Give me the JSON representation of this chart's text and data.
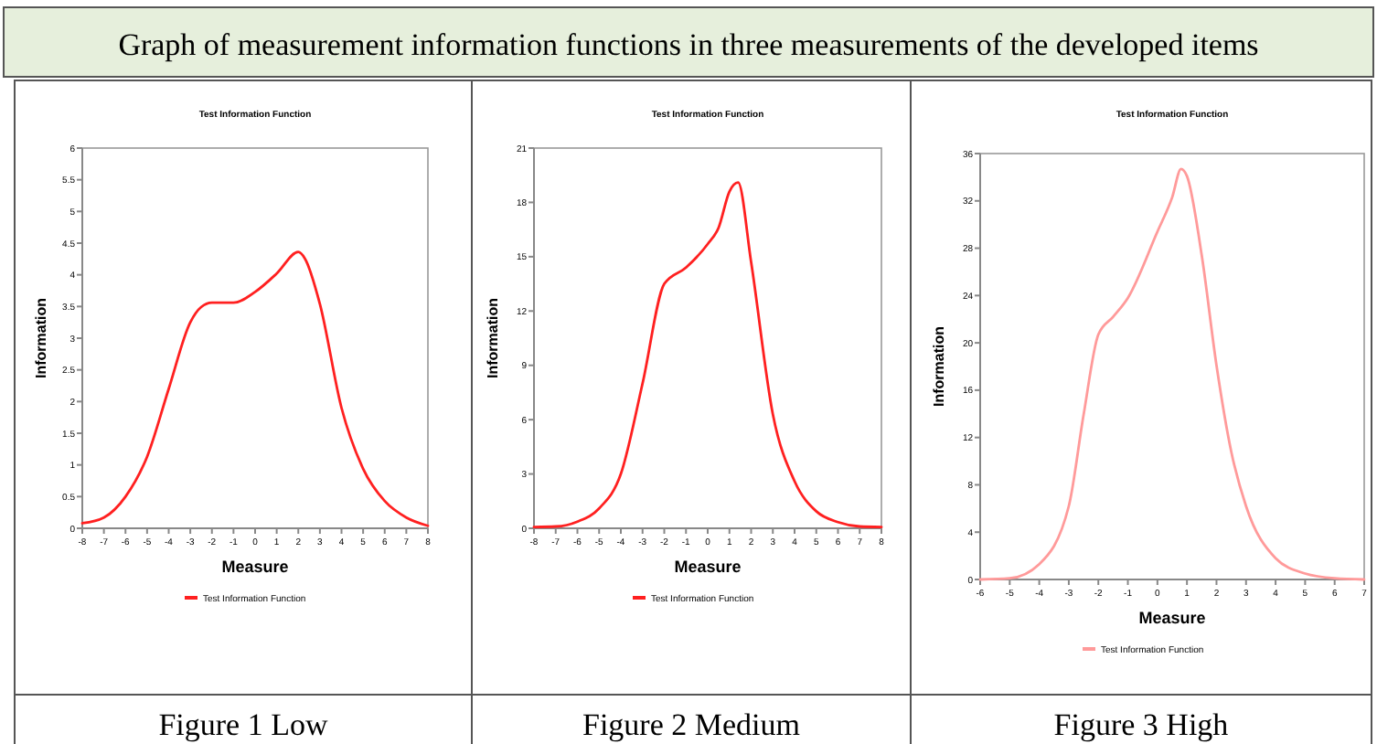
{
  "chart_data": [
    {
      "type": "line",
      "title": "Test Information Function",
      "xlabel": "Measure",
      "ylabel": "Information",
      "annotations": [
        "Graph of measurement  information functions  in three measurements  of the developed items",
        "Figure 1 Low"
      ],
      "legend": "bottom",
      "grid": false,
      "marker": "none",
      "line_style": "solid",
      "xlim": [
        -8,
        8
      ],
      "xticks": [
        -8,
        -7,
        -6,
        -5,
        -4,
        -3,
        -2,
        -1,
        0,
        1,
        2,
        3,
        4,
        5,
        6,
        7,
        8
      ],
      "ylim": [
        0,
        6
      ],
      "yticks": [
        0,
        0.5,
        1,
        1.5,
        2,
        2.5,
        3,
        3.5,
        4,
        4.5,
        5,
        5.5,
        6
      ],
      "x": [
        -8,
        -7,
        -6,
        -5,
        -4,
        -3,
        -2.5,
        -2,
        -1,
        0,
        1,
        2,
        2.3,
        3,
        4,
        5,
        6,
        7,
        8
      ],
      "series": [
        {
          "name": "Test Information Function",
          "color": "#ff2020",
          "values": [
            0.08,
            0.17,
            0.5,
            1.13,
            2.2,
            3.25,
            3.49,
            3.56,
            3.56,
            3.73,
            4.02,
            4.36,
            4.26,
            3.54,
            1.9,
            0.94,
            0.43,
            0.17,
            0.04
          ]
        }
      ]
    },
    {
      "type": "line",
      "title": "Test Information Function",
      "xlabel": "Measure",
      "ylabel": "Information",
      "annotations": [
        "Figure 2 Medium"
      ],
      "legend": "bottom",
      "grid": false,
      "marker": "none",
      "line_style": "solid",
      "xlim": [
        -8,
        8
      ],
      "xticks": [
        -8,
        -7,
        -6,
        -5,
        -4,
        -3,
        -2,
        -1,
        0,
        1,
        2,
        3,
        4,
        5,
        6,
        7,
        8
      ],
      "ylim": [
        0,
        21
      ],
      "yticks": [
        0,
        3,
        6,
        9,
        12,
        15,
        18,
        21
      ],
      "x": [
        -8,
        -7,
        -6,
        -5,
        -4,
        -3,
        -2,
        -1,
        0,
        0.5,
        1,
        1.4,
        2,
        3,
        4,
        5,
        6,
        7,
        8
      ],
      "series": [
        {
          "name": "Test Information Function",
          "color": "#ff2020",
          "values": [
            0.07,
            0.1,
            0.37,
            1.1,
            3,
            8,
            13.5,
            14.4,
            15.7,
            16.6,
            18.6,
            19.1,
            14.7,
            6.3,
            2.6,
            0.94,
            0.34,
            0.1,
            0.07
          ]
        }
      ]
    },
    {
      "type": "line",
      "title": "Test Information Function",
      "xlabel": "Measure",
      "ylabel": "Information",
      "annotations": [
        "Figure 3 High"
      ],
      "legend": "bottom",
      "grid": false,
      "marker": "none",
      "line_style": "solid",
      "xlim": [
        -6,
        7
      ],
      "xticks": [
        -6,
        -5,
        -4,
        -3,
        -2,
        -1,
        0,
        1,
        2,
        3,
        4,
        5,
        6,
        7
      ],
      "ylim": [
        0,
        36
      ],
      "yticks": [
        0,
        4,
        8,
        12,
        16,
        20,
        24,
        28,
        32,
        36
      ],
      "x": [
        -6,
        -5,
        -4,
        -3,
        -2.5,
        -2,
        -1.5,
        -1,
        0,
        0.5,
        0.8,
        1,
        1.5,
        2,
        2.5,
        3,
        4,
        5,
        6,
        7
      ],
      "series": [
        {
          "name": "Test Information Function",
          "color": "#ff9a9a",
          "values": [
            0,
            0.1,
            1.3,
            6.2,
            13.9,
            20.7,
            22.2,
            23.8,
            29.4,
            32.3,
            34.7,
            34.1,
            27.4,
            18.1,
            10.8,
            6.2,
            1.8,
            0.5,
            0.1,
            0
          ]
        }
      ]
    }
  ]
}
